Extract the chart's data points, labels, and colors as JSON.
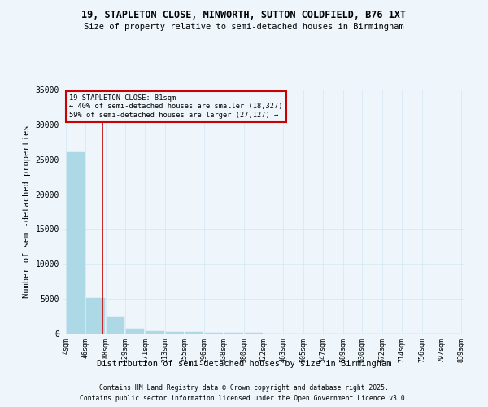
{
  "title": "19, STAPLETON CLOSE, MINWORTH, SUTTON COLDFIELD, B76 1XT",
  "subtitle": "Size of property relative to semi-detached houses in Birmingham",
  "xlabel": "Distribution of semi-detached houses by size in Birmingham",
  "ylabel": "Number of semi-detached properties",
  "footnote1": "Contains HM Land Registry data © Crown copyright and database right 2025.",
  "footnote2": "Contains public sector information licensed under the Open Government Licence v3.0.",
  "annotation_title": "19 STAPLETON CLOSE: 81sqm",
  "annotation_line2": "← 40% of semi-detached houses are smaller (18,327)",
  "annotation_line3": "59% of semi-detached houses are larger (27,127) →",
  "property_size": 81,
  "bin_edges": [
    4,
    46,
    88,
    129,
    171,
    213,
    255,
    296,
    338,
    380,
    422,
    463,
    505,
    547,
    589,
    630,
    672,
    714,
    756,
    797,
    839
  ],
  "bar_heights": [
    26000,
    5100,
    2500,
    700,
    400,
    250,
    180,
    120,
    90,
    60,
    45,
    35,
    25,
    18,
    12,
    8,
    6,
    4,
    3,
    2
  ],
  "bar_color": "#add8e6",
  "bar_edge_color": "#add8e6",
  "red_line_color": "#cc0000",
  "annotation_box_color": "#cc0000",
  "grid_color": "#d0e8f0",
  "background_color": "#eef6fc",
  "ylim": [
    0,
    35000
  ],
  "yticks": [
    0,
    5000,
    10000,
    15000,
    20000,
    25000,
    30000,
    35000
  ]
}
